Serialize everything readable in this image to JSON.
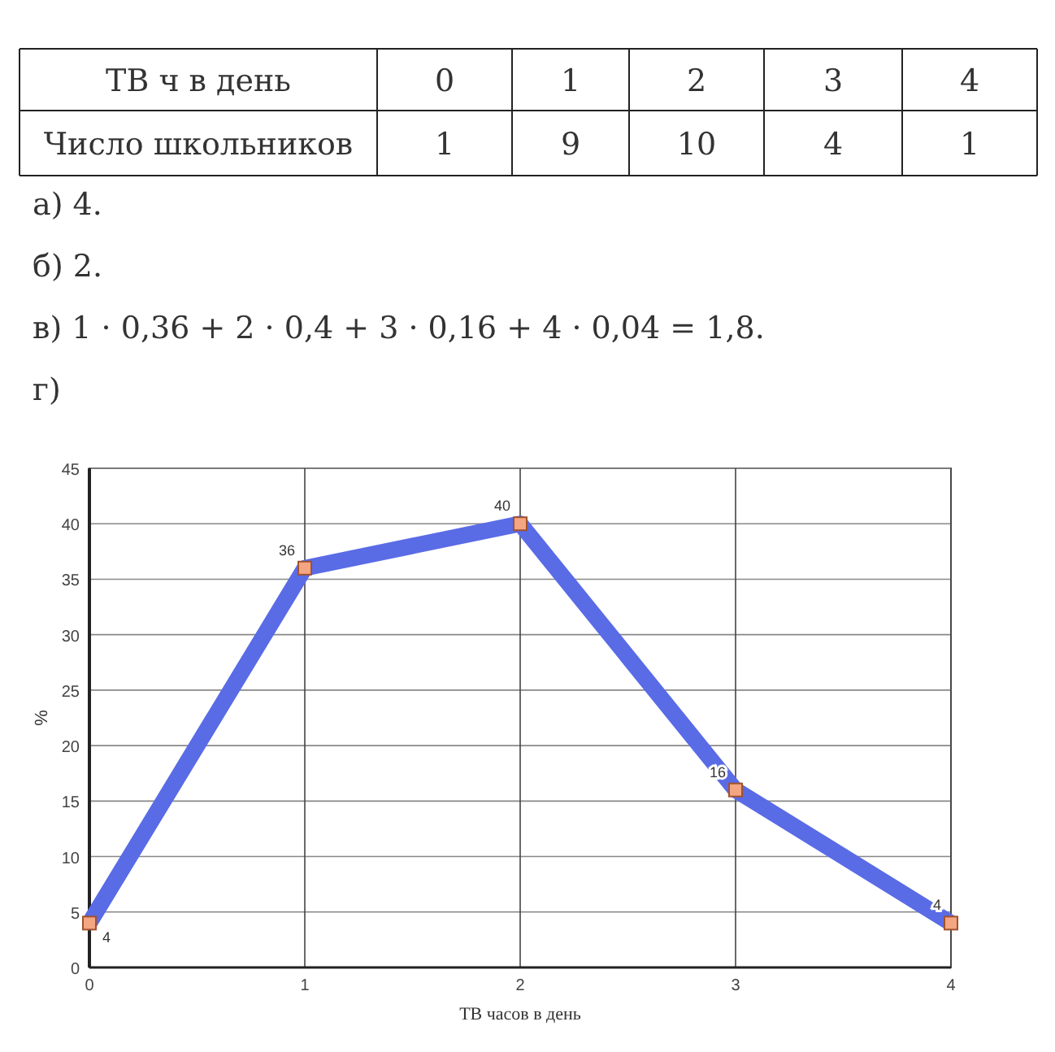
{
  "chart_data": {
    "type": "line",
    "annotations": [
      "ТВ ч в день",
      "0",
      "1",
      "2",
      "3",
      "4",
      "Число школьников",
      "1",
      "9",
      "10",
      "4",
      "1",
      "а) 4.",
      "б) 2.",
      "в) 1 · 0,36 + 2 · 0,4 + 3 · 0,16 + 4 · 0,04 = 1,8.",
      "г)"
    ],
    "xlabel": "ТВ часов в день",
    "ylabel": "%",
    "x": [
      0,
      1,
      2,
      3,
      4
    ],
    "series": [
      {
        "color": "#5a6be6",
        "values": [
          4,
          36,
          40,
          16,
          4
        ]
      }
    ],
    "xlim": [
      0,
      4
    ],
    "xticks": [
      0,
      1,
      2,
      3,
      4
    ],
    "ylim": [
      0,
      45
    ],
    "yticks": [
      0,
      5,
      10,
      15,
      20,
      25,
      30,
      35,
      40,
      45
    ],
    "grid": true,
    "marker": "square",
    "line_style": "solid",
    "data_labels": true
  }
}
